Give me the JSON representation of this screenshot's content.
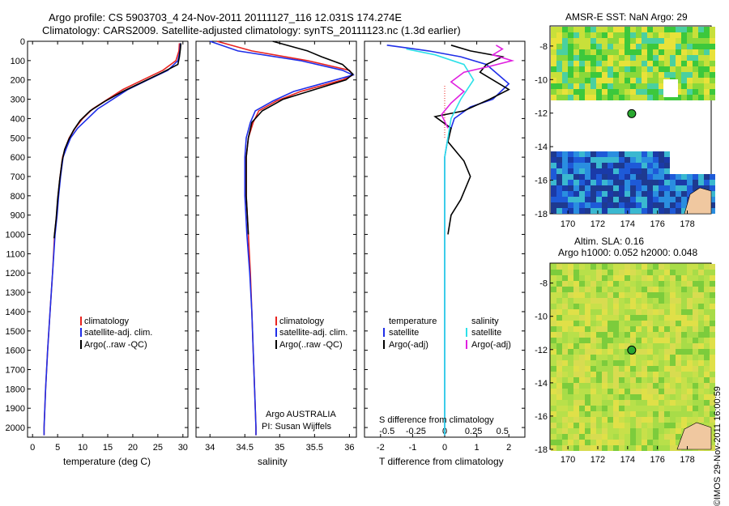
{
  "header": {
    "title_line1": "Argo profile: CS 5903703_4 24-Nov-2011 20111127_116 12.031S 174.274E",
    "title_line2": "Climatology: CARS2009. Satellite-adjusted climatology: synTS_20111123.nc (1.3d earlier)"
  },
  "panels": {
    "temperature": {
      "xlabel": "temperature (deg C)",
      "legend": [
        "climatology",
        "satellite-adj. clim.",
        "Argo(..raw -QC)"
      ]
    },
    "salinity": {
      "xlabel": "salinity",
      "legend": [
        "climatology",
        "satellite-adj. clim.",
        "Argo(..raw -QC)"
      ],
      "note1": "Argo AUSTRALIA",
      "note2": "PI: Susan Wijffels"
    },
    "difference": {
      "xlabel_top": "S difference from climatology",
      "xlabel_bottom": "T difference from climatology",
      "legend_t_title": "temperature",
      "legend_s_title": "salinity",
      "legend_t": [
        "satellite",
        "Argo(-adj)"
      ],
      "legend_s": [
        "satellite",
        "Argo(-adj)"
      ]
    }
  },
  "maps": {
    "sst_title": "AMSR-E SST: NaN Argo: 29",
    "sla_title1": "Altim. SLA: 0.16",
    "sla_title2": "Argo h1000: 0.052 h2000: 0.048",
    "x_ticks": [
      "170",
      "172",
      "174",
      "176",
      "178"
    ],
    "y_ticks": [
      "-8",
      "-10",
      "-12",
      "-14",
      "-16",
      "-18"
    ],
    "float_lon": 174.274,
    "float_lat": -12.031
  },
  "footer": {
    "credit": "©IMOS 29-Nov-2011 16:00:59"
  },
  "colors": {
    "climatology": "#e8231f",
    "satellite": "#1f2ee8",
    "argo": "#000000",
    "sal_satellite": "#2de0e8",
    "sal_argo": "#e020e0"
  },
  "chart_data": [
    {
      "type": "line",
      "panel": "temperature",
      "xlabel": "temperature (deg C)",
      "ylim": [
        2050,
        0
      ],
      "xlim": [
        -1,
        31
      ],
      "x_ticks": [
        0,
        5,
        10,
        15,
        20,
        25,
        30
      ],
      "y_ticks": [
        0,
        100,
        200,
        300,
        400,
        500,
        600,
        700,
        800,
        900,
        1000,
        1100,
        1200,
        1300,
        1400,
        1500,
        1600,
        1700,
        1800,
        1900,
        2000
      ],
      "series": [
        {
          "name": "climatology",
          "color": "#e8231f",
          "points": [
            [
              29.3,
              10
            ],
            [
              29.2,
              50
            ],
            [
              28.6,
              100
            ],
            [
              26,
              150
            ],
            [
              22,
              200
            ],
            [
              18,
              250
            ],
            [
              15,
              300
            ],
            [
              12,
              350
            ],
            [
              10,
              400
            ],
            [
              8.5,
              450
            ],
            [
              7.3,
              500
            ],
            [
              6.6,
              550
            ],
            [
              6,
              600
            ],
            [
              5.5,
              700
            ],
            [
              5.1,
              800
            ],
            [
              4.8,
              900
            ],
            [
              4.4,
              1000
            ],
            [
              4,
              1200
            ],
            [
              3.5,
              1400
            ],
            [
              3,
              1600
            ],
            [
              2.6,
              1800
            ],
            [
              2.3,
              2000
            ],
            [
              2.3,
              2040
            ]
          ]
        },
        {
          "name": "satellite-adj. clim.",
          "color": "#1f2ee8",
          "points": [
            [
              29.5,
              10
            ],
            [
              29.4,
              50
            ],
            [
              29,
              100
            ],
            [
              27,
              150
            ],
            [
              23,
              200
            ],
            [
              19,
              250
            ],
            [
              16,
              300
            ],
            [
              13,
              350
            ],
            [
              11,
              400
            ],
            [
              9,
              450
            ],
            [
              7.6,
              500
            ],
            [
              6.8,
              550
            ],
            [
              6.1,
              600
            ],
            [
              5.6,
              700
            ],
            [
              5.2,
              800
            ],
            [
              4.9,
              900
            ],
            [
              4.5,
              1000
            ],
            [
              4,
              1200
            ],
            [
              3.5,
              1400
            ],
            [
              3,
              1600
            ],
            [
              2.6,
              1800
            ],
            [
              2.3,
              2000
            ],
            [
              2.3,
              2040
            ]
          ]
        },
        {
          "name": "Argo(..raw -QC)",
          "color": "#000000",
          "points": [
            [
              29.6,
              10
            ],
            [
              29.5,
              40
            ],
            [
              29.3,
              80
            ],
            [
              29,
              120
            ],
            [
              26,
              160
            ],
            [
              22,
              210
            ],
            [
              18,
              260
            ],
            [
              14.5,
              310
            ],
            [
              11.5,
              360
            ],
            [
              9.5,
              410
            ],
            [
              8.2,
              460
            ],
            [
              7.2,
              510
            ],
            [
              6.4,
              560
            ],
            [
              5.9,
              620
            ],
            [
              5.4,
              720
            ],
            [
              5,
              820
            ],
            [
              4.7,
              920
            ],
            [
              4.3,
              1020
            ]
          ]
        }
      ]
    },
    {
      "type": "line",
      "panel": "salinity",
      "xlabel": "salinity",
      "ylim": [
        2050,
        0
      ],
      "xlim": [
        33.8,
        36.1
      ],
      "x_ticks": [
        34,
        34.5,
        35,
        35.5,
        36
      ],
      "series": [
        {
          "name": "climatology",
          "color": "#e8231f",
          "points": [
            [
              34.1,
              0
            ],
            [
              34.6,
              50
            ],
            [
              35.4,
              100
            ],
            [
              36.0,
              150
            ],
            [
              36.05,
              175
            ],
            [
              35.9,
              200
            ],
            [
              35.3,
              260
            ],
            [
              34.95,
              310
            ],
            [
              34.7,
              360
            ],
            [
              34.62,
              420
            ],
            [
              34.55,
              500
            ],
            [
              34.52,
              600
            ],
            [
              34.52,
              800
            ],
            [
              34.55,
              1000
            ],
            [
              34.58,
              1200
            ],
            [
              34.6,
              1400
            ],
            [
              34.62,
              1600
            ],
            [
              34.64,
              1800
            ],
            [
              34.66,
              2000
            ],
            [
              34.66,
              2040
            ]
          ]
        },
        {
          "name": "satellite-adj. clim.",
          "color": "#1f2ee8",
          "points": [
            [
              34.0,
              0
            ],
            [
              34.4,
              50
            ],
            [
              35.3,
              100
            ],
            [
              35.9,
              150
            ],
            [
              36.05,
              175
            ],
            [
              35.8,
              200
            ],
            [
              35.2,
              260
            ],
            [
              34.9,
              310
            ],
            [
              34.65,
              360
            ],
            [
              34.58,
              420
            ],
            [
              34.52,
              500
            ],
            [
              34.5,
              600
            ],
            [
              34.5,
              800
            ],
            [
              34.53,
              1000
            ],
            [
              34.57,
              1200
            ],
            [
              34.6,
              1400
            ],
            [
              34.62,
              1600
            ],
            [
              34.64,
              1800
            ],
            [
              34.66,
              2000
            ],
            [
              34.66,
              2040
            ]
          ]
        },
        {
          "name": "Argo(..raw -QC)",
          "color": "#000000",
          "points": [
            [
              34.9,
              0
            ],
            [
              35.4,
              50
            ],
            [
              35.6,
              80
            ],
            [
              35.9,
              120
            ],
            [
              36.05,
              170
            ],
            [
              35.95,
              200
            ],
            [
              35.5,
              250
            ],
            [
              35.05,
              300
            ],
            [
              34.75,
              360
            ],
            [
              34.6,
              420
            ],
            [
              34.55,
              500
            ],
            [
              34.52,
              600
            ],
            [
              34.52,
              800
            ],
            [
              34.55,
              1000
            ]
          ]
        }
      ]
    },
    {
      "type": "line",
      "panel": "difference",
      "xlabel": "T difference from climatology",
      "x2label": "S difference from climatology",
      "ylim": [
        2050,
        0
      ],
      "xlim": [
        -2.5,
        2.5
      ],
      "x_ticks": [
        -2,
        -1,
        0,
        1,
        2
      ],
      "x2_ticks": [
        "-0.5",
        "-0.25",
        "0",
        "0.25",
        "0.5"
      ],
      "series": [
        {
          "name": "temperature satellite",
          "color": "#1f2ee8",
          "points": [
            [
              -1.8,
              20
            ],
            [
              -0.5,
              50
            ],
            [
              0.5,
              80
            ],
            [
              1.3,
              120
            ],
            [
              2.0,
              220
            ],
            [
              1.5,
              300
            ],
            [
              0.8,
              340
            ],
            [
              0.3,
              400
            ],
            [
              0.1,
              500
            ],
            [
              0,
              600
            ],
            [
              0,
              800
            ],
            [
              0,
              1000
            ],
            [
              0,
              1500
            ],
            [
              0,
              2000
            ],
            [
              0,
              2040
            ]
          ]
        },
        {
          "name": "temperature Argo(-adj)",
          "color": "#000000",
          "points": [
            [
              0.2,
              20
            ],
            [
              0.8,
              50
            ],
            [
              1.8,
              80
            ],
            [
              1.3,
              120
            ],
            [
              1.1,
              160
            ],
            [
              2.0,
              250
            ],
            [
              1.4,
              300
            ],
            [
              0.6,
              360
            ],
            [
              -0.3,
              390
            ],
            [
              0.2,
              450
            ],
            [
              0.1,
              520
            ],
            [
              0.6,
              620
            ],
            [
              0.8,
              700
            ],
            [
              0.5,
              820
            ],
            [
              0.2,
              900
            ],
            [
              0.1,
              1000
            ]
          ]
        },
        {
          "name": "salinity satellite",
          "color": "#2de0e8",
          "points": [
            [
              -1.2,
              40
            ],
            [
              -0.3,
              70
            ],
            [
              0.6,
              120
            ],
            [
              0.9,
              200
            ],
            [
              0.5,
              300
            ],
            [
              0.2,
              400
            ],
            [
              0.1,
              500
            ],
            [
              0,
              600
            ],
            [
              0,
              800
            ],
            [
              0,
              1000
            ],
            [
              0,
              1500
            ],
            [
              0,
              2000
            ],
            [
              0,
              2040
            ]
          ]
        },
        {
          "name": "salinity Argo(-adj)",
          "color": "#e020e0",
          "points": [
            [
              1.6,
              20
            ],
            [
              1.8,
              40
            ],
            [
              1.5,
              70
            ],
            [
              2.1,
              100
            ],
            [
              1.4,
              130
            ],
            [
              0.6,
              160
            ],
            [
              0.2,
              210
            ],
            [
              0.6,
              260
            ],
            [
              0.2,
              320
            ],
            [
              -0.1,
              380
            ],
            [
              0.1,
              450
            ]
          ]
        }
      ]
    }
  ]
}
